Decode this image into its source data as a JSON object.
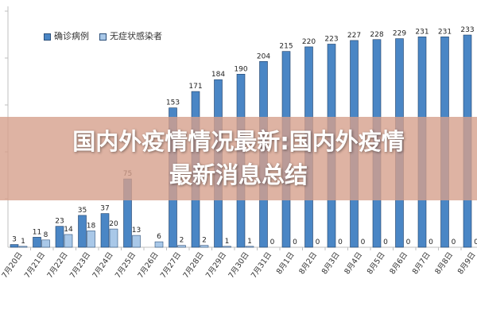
{
  "banner": {
    "line1": "国内外疫情情况最新:国内外疫情",
    "line2": "最新消息总结"
  },
  "chart_data": {
    "type": "bar",
    "categories": [
      "7月20日",
      "7月21日",
      "7月22日",
      "7月23日",
      "7月24日",
      "7月25日",
      "7月26日",
      "7月27日",
      "7月28日",
      "7月29日",
      "7月30日",
      "7月31日",
      "8月1日",
      "8月2日",
      "8月3日",
      "8月4日",
      "8月5日",
      "8月6日",
      "8月7日",
      "8月8日",
      "8月9日"
    ],
    "series": [
      {
        "name": "确诊病例",
        "color": "#4a86c5",
        "values": [
          3,
          11,
          23,
          35,
          37,
          75,
          null,
          153,
          171,
          184,
          190,
          204,
          215,
          220,
          223,
          227,
          228,
          229,
          231,
          231,
          233
        ]
      },
      {
        "name": "无症状感染者",
        "color": "#a9c8e8",
        "values": [
          1,
          8,
          14,
          18,
          20,
          13,
          6,
          2,
          2,
          1,
          1,
          0,
          0,
          0,
          0,
          0,
          0,
          0,
          0,
          0,
          0
        ]
      }
    ],
    "ylim": [
      0,
      240
    ],
    "legend": "top-left",
    "grid": false
  }
}
